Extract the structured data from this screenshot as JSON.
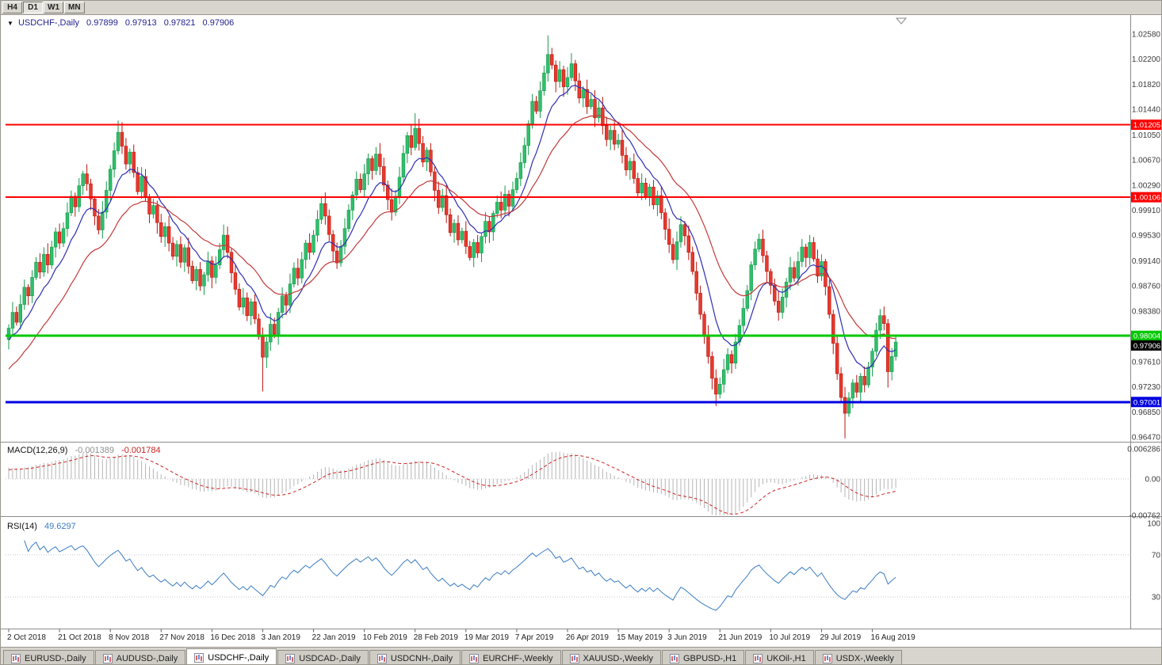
{
  "toolbar": {
    "timeframes": [
      {
        "label": "H4",
        "active": false
      },
      {
        "label": "D1",
        "active": true
      },
      {
        "label": "W1",
        "active": false
      },
      {
        "label": "MN",
        "active": false
      }
    ]
  },
  "title_overlay": {
    "marker": "▼",
    "symbol": "USDCHF-,Daily",
    "open": "0.97899",
    "high": "0.97913",
    "low": "0.97821",
    "close": "0.97906"
  },
  "indicators": {
    "macd": {
      "name": "MACD(12,26,9)",
      "main_value": "-0.001389",
      "signal_value": "-0.001784"
    },
    "rsi": {
      "name": "RSI(14)",
      "value": "49.6297"
    }
  },
  "chart_data": [
    {
      "type": "candlestick",
      "title": "USDCHF-,Daily",
      "x_tick_labels": [
        "2 Oct 2018",
        "21 Oct 2018",
        "8 Nov 2018",
        "27 Nov 2018",
        "16 Dec 2018",
        "3 Jan 2019",
        "22 Jan 2019",
        "10 Feb 2019",
        "28 Feb 2019",
        "19 Mar 2019",
        "7 Apr 2019",
        "26 Apr 2019",
        "15 May 2019",
        "3 Jun 2019",
        "21 Jun 2019",
        "10 Jul 2019",
        "29 Jul 2019",
        "16 Aug 2019"
      ],
      "x_tick_step": 13,
      "y_tick_labels": [
        "1.02580",
        "1.02200",
        "1.01820",
        "1.01440",
        "1.01050",
        "1.00670",
        "1.00290",
        "0.99910",
        "0.99530",
        "0.99140",
        "0.98760",
        "0.98380",
        "0.97610",
        "0.97230",
        "0.96850",
        "0.96470"
      ],
      "ylim": [
        0.9641,
        1.02652
      ],
      "up_color": "#2fbf6b",
      "down_color": "#e8392d",
      "first_open": 0.9795,
      "closes": [
        0.9812,
        0.9836,
        0.9821,
        0.9848,
        0.9874,
        0.9861,
        0.9889,
        0.9912,
        0.9897,
        0.9924,
        0.9908,
        0.9935,
        0.9958,
        0.9941,
        0.9963,
        0.9987,
        1.0012,
        0.9996,
        1.0028,
        1.0046,
        1.0031,
        1.0008,
        0.9982,
        0.9961,
        0.9988,
        1.0021,
        1.0053,
        1.0081,
        1.0109,
        1.0088,
        1.0061,
        1.0079,
        1.0048,
        1.0019,
        1.0042,
        1.0011,
        0.9985,
        0.9998,
        0.9972,
        0.9951,
        0.9966,
        0.9941,
        0.9921,
        0.9939,
        0.9912,
        0.9934,
        0.9906,
        0.9884,
        0.9901,
        0.9876,
        0.9893,
        0.9914,
        0.9889,
        0.9908,
        0.9931,
        0.9953,
        0.9927,
        0.9896,
        0.9871,
        0.9844,
        0.9858,
        0.9831,
        0.9852,
        0.9826,
        0.9799,
        0.9768,
        0.9791,
        0.9818,
        0.9803,
        0.9836,
        0.9861,
        0.9847,
        0.9879,
        0.9903,
        0.9888,
        0.9916,
        0.9941,
        0.9927,
        0.9953,
        0.9977,
        1.0001,
        0.9982,
        0.9954,
        0.9929,
        0.9911,
        0.9936,
        0.9963,
        0.9991,
        1.0014,
        1.0038,
        1.0022,
        1.0046,
        1.0069,
        1.0051,
        1.0076,
        1.0057,
        1.0029,
        1.0007,
        0.9988,
        1.0012,
        1.0041,
        1.0077,
        1.0104,
        1.0086,
        1.0115,
        1.0092,
        1.0064,
        1.0082,
        1.0049,
        1.0021,
        0.9995,
        1.0013,
        0.9984,
        0.9957,
        0.9971,
        0.9946,
        0.9959,
        0.9936,
        0.9919,
        0.9942,
        0.9926,
        0.9951,
        0.9974,
        0.9958,
        0.9986,
        1.0003,
        0.9991,
        1.0015,
        0.9997,
        1.0022,
        1.0039,
        1.0063,
        1.0089,
        1.0122,
        1.0156,
        1.0141,
        1.0172,
        1.0199,
        1.0227,
        1.0211,
        1.0186,
        1.0204,
        1.0178,
        1.0192,
        1.0213,
        1.0187,
        1.0161,
        1.0174,
        1.0148,
        1.0159,
        1.0131,
        1.0146,
        1.0119,
        1.0098,
        1.0112,
        1.0091,
        1.0097,
        1.0074,
        1.0052,
        1.0065,
        1.0039,
        1.0017,
        1.0032,
        1.0011,
        1.0026,
        0.9999,
        1.0013,
        0.9987,
        0.9962,
        0.9939,
        0.9916,
        0.9943,
        0.9969,
        0.9952,
        0.9927,
        0.9898,
        0.9865,
        0.9833,
        0.9802,
        0.9769,
        0.9736,
        0.9712,
        0.9727,
        0.9749,
        0.9772,
        0.9759,
        0.9791,
        0.9816,
        0.9842,
        0.9869,
        0.9908,
        0.9932,
        0.9947,
        0.9922,
        0.9898,
        0.9877,
        0.9853,
        0.9836,
        0.9859,
        0.9882,
        0.9904,
        0.9888,
        0.9913,
        0.9935,
        0.9919,
        0.9942,
        0.9917,
        0.9891,
        0.9913,
        0.9875,
        0.9833,
        0.9789,
        0.9743,
        0.9707,
        0.9683,
        0.9706,
        0.9729,
        0.9715,
        0.9739,
        0.9726,
        0.9753,
        0.9777,
        0.9809,
        0.9831,
        0.9819,
        0.9746,
        0.9769,
        0.9791
      ],
      "wick_overrides": {
        "28": {
          "h": 1.0127
        },
        "65": {
          "l": 0.9716
        },
        "104": {
          "h": 1.0138
        },
        "138": {
          "h": 1.0256
        },
        "144": {
          "h": 1.0229
        },
        "181": {
          "l": 0.9694
        },
        "214": {
          "l": 0.9645
        },
        "223": {
          "h": 0.9841
        },
        "225": {
          "l": 0.9722
        }
      },
      "moving_averages": [
        {
          "period": 10,
          "color": "#2d2db4",
          "seed": 0.979
        },
        {
          "period": 25,
          "color": "#c43939",
          "seed": 0.9745
        }
      ],
      "hlines": [
        {
          "value": 1.01205,
          "label": "1.01205",
          "color": "#ff0000",
          "width": 2,
          "name": "resistance-upper"
        },
        {
          "value": 1.00106,
          "label": "1.00106",
          "color": "#ff0000",
          "width": 2,
          "name": "resistance-lower"
        },
        {
          "value": 0.98004,
          "label": "0.98004",
          "color": "#00c800",
          "width": 3,
          "name": "support-green"
        },
        {
          "value": 0.97001,
          "label": "0.97001",
          "color": "#0000e0",
          "width": 3,
          "name": "support-blue"
        }
      ],
      "current_price": {
        "value": 0.97906,
        "label": "0.97906",
        "bg": "#000000"
      }
    },
    {
      "type": "macd",
      "label": "MACD(12,26,9)",
      "params": [
        12,
        26,
        9
      ],
      "current_values": [
        -0.001389,
        -0.001784
      ],
      "y_tick_labels": [
        "0.006286",
        "0.00",
        "-0.00762"
      ],
      "ylim": [
        -0.00762,
        0.006286
      ],
      "histogram_color": "#b4b4b4",
      "signal_color": "#cc2222",
      "derived_from": "closes"
    },
    {
      "type": "rsi",
      "label": "RSI(14)",
      "period": 14,
      "current_value": 49.6297,
      "y_tick_labels": [
        "100",
        "70",
        "30"
      ],
      "levels": [
        70,
        30
      ],
      "ylim": [
        0,
        100
      ],
      "line_color": "#3b7dc4",
      "derived_from": "closes"
    }
  ],
  "tabs": [
    {
      "label": "EURUSD-,Daily",
      "active": false
    },
    {
      "label": "AUDUSD-,Daily",
      "active": false
    },
    {
      "label": "USDCHF-,Daily",
      "active": true
    },
    {
      "label": "USDCAD-,Daily",
      "active": false
    },
    {
      "label": "USDCNH-,Daily",
      "active": false
    },
    {
      "label": "EURCHF-,Weekly",
      "active": false
    },
    {
      "label": "XAUUSD-,Weekly",
      "active": false
    },
    {
      "label": "GBPUSD-,H1",
      "active": false
    },
    {
      "label": "UKOil-,H1",
      "active": false
    },
    {
      "label": "USDX-,Weekly",
      "active": false
    }
  ]
}
